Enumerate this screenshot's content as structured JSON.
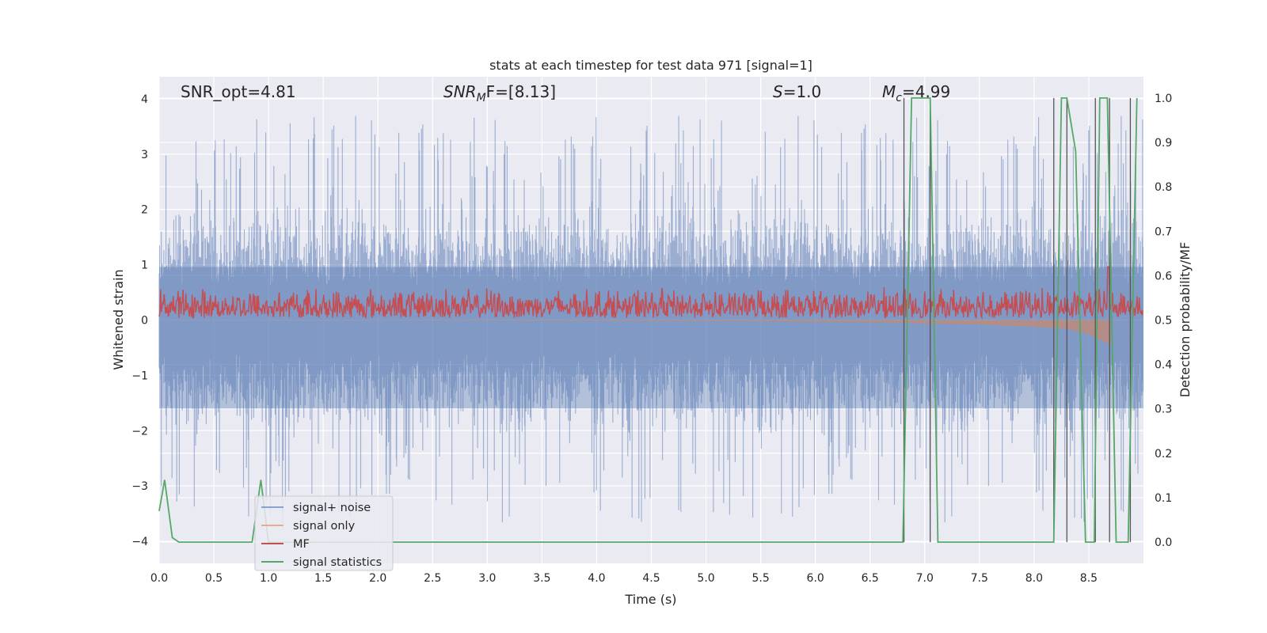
{
  "chart_data": {
    "type": "line",
    "title": "stats at each timestep for test data 971 [signal=1]",
    "xlabel": "Time (s)",
    "ylabel_left": "Whitened strain",
    "ylabel_right": "Detection probability/MF",
    "xlim": [
      0.0,
      9.0
    ],
    "ylim_left": [
      -4.4,
      4.4
    ],
    "ylim_right": [
      -0.048,
      1.048
    ],
    "x_ticks": [
      "0.0",
      "0.5",
      "1.0",
      "1.5",
      "2.0",
      "2.5",
      "3.0",
      "3.5",
      "4.0",
      "4.5",
      "5.0",
      "5.5",
      "6.0",
      "6.5",
      "7.0",
      "7.5",
      "8.0",
      "8.5"
    ],
    "y_ticks_left": [
      "−4",
      "−3",
      "−2",
      "−1",
      "0",
      "1",
      "2",
      "3",
      "4"
    ],
    "y_ticks_right": [
      "0.0",
      "0.1",
      "0.2",
      "0.3",
      "0.4",
      "0.5",
      "0.6",
      "0.7",
      "0.8",
      "0.9",
      "1.0"
    ],
    "grid": true,
    "legend_position": "lower-left",
    "annotations": {
      "snr_opt": "SNR_opt=4.81",
      "snr_mf_var": "SNR",
      "snr_mf_sub": "M",
      "snr_mf_rest": "F=[8.13]",
      "s_var": "S",
      "s_rest": "=1.0",
      "mc_var": "M",
      "mc_sub": "c",
      "mc_rest": "=4.99"
    },
    "series": [
      {
        "name": "signal+ noise",
        "color": "#4c72b0",
        "description_values": {
          "approx_range": [
            -4.0,
            3.8
          ],
          "typical_band": [
            -1.6,
            1.6
          ]
        }
      },
      {
        "name": "signal only",
        "color": "#dd8452",
        "x": [
          0.0,
          3.0,
          5.0,
          6.5,
          7.0,
          7.5,
          8.0,
          8.3,
          8.5,
          8.6,
          8.7
        ],
        "y_low": [
          0.0,
          -0.01,
          -0.02,
          -0.04,
          -0.06,
          -0.08,
          -0.12,
          -0.16,
          -0.25,
          -0.35,
          -0.45
        ]
      },
      {
        "name": "MF",
        "color": "#c44e52",
        "axis": "right",
        "approx_band": [
          0.5,
          0.56
        ],
        "peak": {
          "x": 8.68,
          "y": 0.62
        }
      },
      {
        "name": "signal statistics",
        "color": "#55a868",
        "axis": "right",
        "x": [
          0.0,
          0.05,
          0.12,
          0.18,
          0.85,
          0.93,
          1.0,
          6.8,
          6.88,
          7.05,
          7.12,
          7.2,
          8.18,
          8.25,
          8.3,
          8.38,
          8.47,
          8.55,
          8.6,
          8.67,
          8.75,
          8.86,
          8.94
        ],
        "y": [
          0.07,
          0.14,
          0.01,
          0.0,
          0.0,
          0.14,
          0.0,
          0.0,
          1.0,
          1.0,
          0.0,
          0.0,
          0.0,
          1.0,
          1.0,
          0.88,
          0.0,
          0.0,
          1.0,
          1.0,
          0.0,
          0.0,
          1.0
        ]
      }
    ],
    "detection_lines_x": [
      6.81,
      7.05,
      8.18,
      8.3,
      8.56,
      8.69,
      8.88
    ]
  }
}
